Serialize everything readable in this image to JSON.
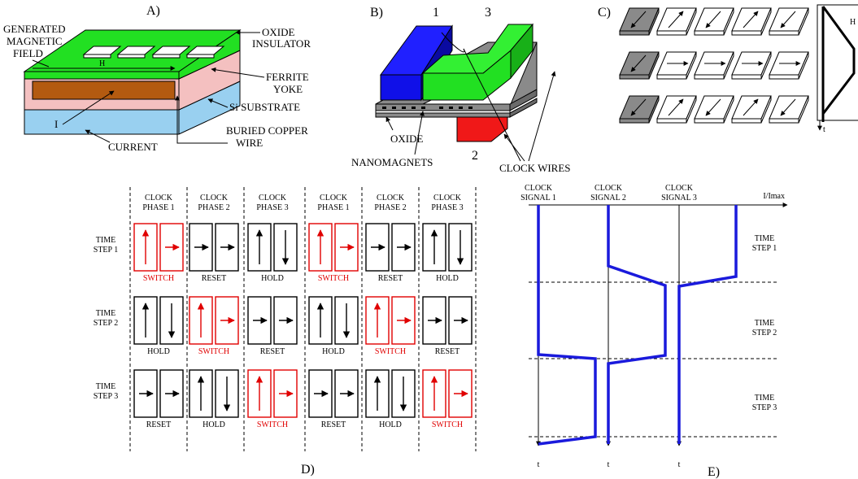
{
  "panels": {
    "a": {
      "label": "A)",
      "generated_magnetic_field": [
        "GENERATED",
        "MAGNETIC",
        "FIELD"
      ],
      "h": "H",
      "oxide_insulator": [
        "OXIDE",
        "INSULATOR"
      ],
      "ferrite_yoke": [
        "FERRITE",
        "YOKE"
      ],
      "si_substrate": "Si SUBSTRATE",
      "i": "I",
      "buried_copper_wire": [
        "BURIED COPPER",
        "WIRE"
      ],
      "current": "CURRENT"
    },
    "b": {
      "label": "B)",
      "n1": "1",
      "n2": "2",
      "n3": "3",
      "oxide": "OXIDE",
      "nanomagnets": "NANOMAGNETS",
      "clock_wires": "CLOCK WIRES"
    },
    "c": {
      "label": "C)",
      "h": "H",
      "t": "t"
    },
    "d": {
      "label": "D)",
      "columns": [
        {
          "clock": "CLOCK",
          "phase": "PHASE 1"
        },
        {
          "clock": "CLOCK",
          "phase": "PHASE 2"
        },
        {
          "clock": "CLOCK",
          "phase": "PHASE 3"
        },
        {
          "clock": "CLOCK",
          "phase": "PHASE 1"
        },
        {
          "clock": "CLOCK",
          "phase": "PHASE 2"
        },
        {
          "clock": "CLOCK",
          "phase": "PHASE 3"
        }
      ],
      "rows": [
        {
          "time": "TIME",
          "step": "STEP 1"
        },
        {
          "time": "TIME",
          "step": "STEP 2"
        },
        {
          "time": "TIME",
          "step": "STEP 3"
        }
      ],
      "states": {
        "switch": "SWITCH",
        "reset": "RESET",
        "hold": "HOLD"
      },
      "grid": [
        [
          "switch",
          "reset",
          "hold",
          "switch",
          "reset",
          "hold"
        ],
        [
          "hold",
          "switch",
          "reset",
          "hold",
          "switch",
          "reset"
        ],
        [
          "reset",
          "hold",
          "switch",
          "reset",
          "hold",
          "switch"
        ]
      ],
      "active_color": "#e00000",
      "idle_color": "#000000"
    },
    "e": {
      "label": "E)",
      "signals": [
        {
          "line1": "CLOCK",
          "line2": "SIGNAL 1"
        },
        {
          "line1": "CLOCK",
          "line2": "SIGNAL 2"
        },
        {
          "line1": "CLOCK",
          "line2": "SIGNAL 3"
        }
      ],
      "axis": "I/Imax",
      "t": "t",
      "steps": [
        {
          "time": "TIME",
          "step": "STEP 1"
        },
        {
          "time": "TIME",
          "step": "STEP 2"
        },
        {
          "time": "TIME",
          "step": "STEP 3"
        }
      ],
      "signal_color": "#1a1adc"
    }
  },
  "colors": {
    "green": "#22e022",
    "pink": "#f4c0c0",
    "blue_substrate": "#99d0f0",
    "copper": "#b35a10",
    "blue_block": "#1010e8",
    "red_block": "#f01818",
    "gray": "#8a8a8a"
  }
}
